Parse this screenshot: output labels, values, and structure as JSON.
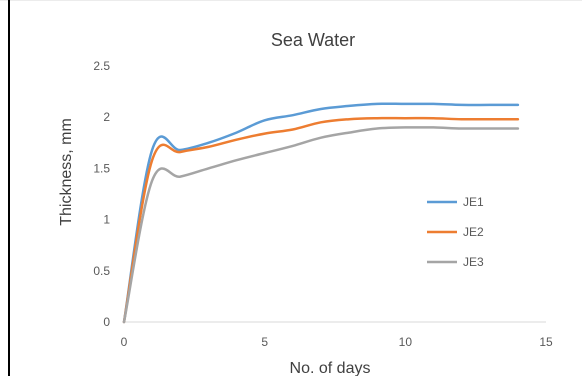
{
  "chart_data": {
    "type": "line",
    "title": "Sea Water",
    "xlabel": "No. of days",
    "ylabel": "Thickness, mm",
    "xlim": [
      0,
      15
    ],
    "ylim": [
      0,
      2.5
    ],
    "xticks": [
      0,
      5,
      10,
      15
    ],
    "yticks": [
      0,
      0.5,
      1,
      1.5,
      2,
      2.5
    ],
    "grid": false,
    "legend_position": "right",
    "series": [
      {
        "name": "JE1",
        "color": "#5B9BD5",
        "x": [
          0,
          1,
          2,
          3,
          4,
          5,
          6,
          7,
          8,
          9,
          10,
          11,
          12,
          13,
          14
        ],
        "values": [
          0,
          1.68,
          1.68,
          1.75,
          1.85,
          1.97,
          2.02,
          2.08,
          2.11,
          2.13,
          2.13,
          2.13,
          2.12,
          2.12,
          2.12
        ]
      },
      {
        "name": "JE2",
        "color": "#ED7D31",
        "x": [
          0,
          1,
          2,
          3,
          4,
          5,
          6,
          7,
          8,
          9,
          10,
          11,
          12,
          13,
          14
        ],
        "values": [
          0,
          1.58,
          1.66,
          1.71,
          1.78,
          1.84,
          1.88,
          1.95,
          1.98,
          1.99,
          1.99,
          1.99,
          1.98,
          1.98,
          1.98
        ]
      },
      {
        "name": "JE3",
        "color": "#A5A5A5",
        "x": [
          0,
          1,
          2,
          3,
          4,
          5,
          6,
          7,
          8,
          9,
          10,
          11,
          12,
          13,
          14
        ],
        "values": [
          0,
          1.38,
          1.42,
          1.5,
          1.58,
          1.65,
          1.72,
          1.8,
          1.85,
          1.89,
          1.9,
          1.9,
          1.89,
          1.89,
          1.89
        ]
      }
    ]
  }
}
